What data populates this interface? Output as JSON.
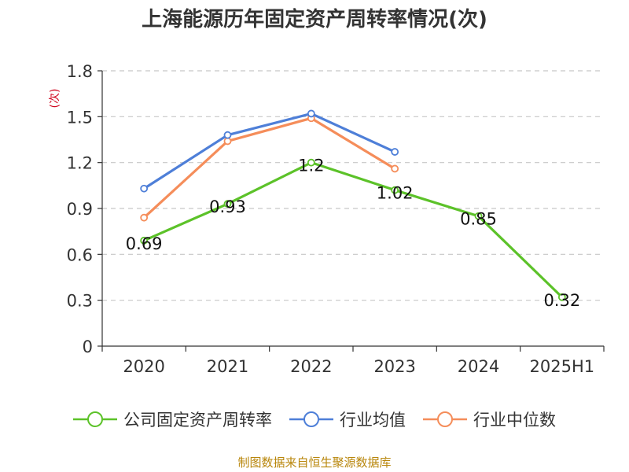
{
  "title": "上海能源历年固定资产周转率情况(次)",
  "footer": "制图数据来自恒生聚源数据库",
  "chart_data": {
    "type": "line",
    "ylabel": "(次)",
    "ylim": [
      0,
      1.8
    ],
    "yticks": [
      "0",
      "0.3",
      "0.6",
      "0.9",
      "1.2",
      "1.5",
      "1.8"
    ],
    "ytick_values": [
      0,
      0.3,
      0.6,
      0.9,
      1.2,
      1.5,
      1.8
    ],
    "categories": [
      "2020",
      "2021",
      "2022",
      "2023",
      "2024",
      "2025H1"
    ],
    "grid": true,
    "legend_position": "bottom",
    "series": [
      {
        "name": "公司固定资产周转率",
        "color": "#5cc229",
        "values": [
          0.69,
          0.93,
          1.2,
          1.02,
          0.85,
          0.32
        ],
        "labels": [
          "0.69",
          "0.93",
          "1.2",
          "1.02",
          "0.85",
          "0.32"
        ]
      },
      {
        "name": "行业均值",
        "color": "#4e7fd8",
        "values": [
          1.03,
          1.38,
          1.52,
          1.27,
          null,
          null
        ]
      },
      {
        "name": "行业中位数",
        "color": "#f58d5a",
        "values": [
          0.84,
          1.34,
          1.49,
          1.16,
          null,
          null
        ]
      }
    ]
  }
}
